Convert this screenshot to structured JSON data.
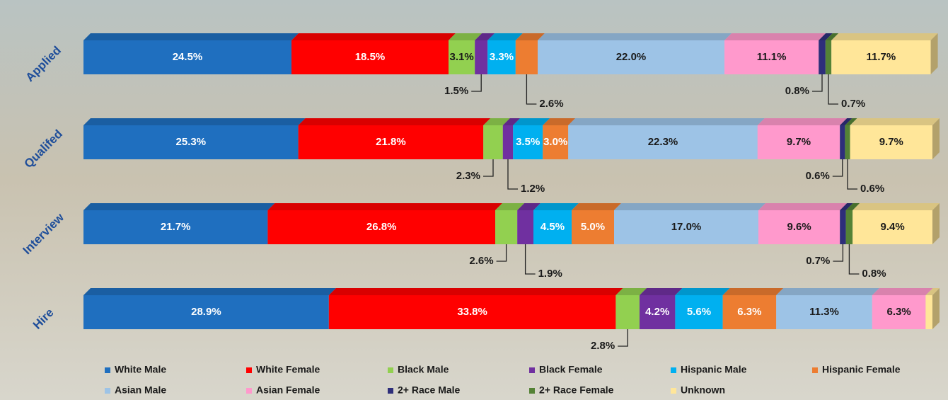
{
  "chart_data": {
    "type": "stacked-bar-horizontal",
    "categories": [
      "Applied",
      "Qualifed",
      "Interview",
      "Hire"
    ],
    "xlim": [
      0,
      100
    ],
    "series": [
      {
        "name": "White Male",
        "color": "#1f6fbf",
        "values": [
          24.5,
          25.3,
          21.7,
          28.9
        ],
        "value_labels": [
          "24.5%",
          "25.3%",
          "21.7%",
          "28.9%"
        ]
      },
      {
        "name": "White Female",
        "color": "#ff0000",
        "values": [
          18.5,
          21.8,
          26.8,
          33.8
        ],
        "value_labels": [
          "18.5%",
          "21.8%",
          "26.8%",
          "33.8%"
        ]
      },
      {
        "name": "Black Male",
        "color": "#92d050",
        "values": [
          3.1,
          2.3,
          2.6,
          2.8
        ],
        "value_labels": [
          "3.1%",
          "2.3%",
          "2.6%",
          "2.8%"
        ]
      },
      {
        "name": "Black Female",
        "color": "#7030a0",
        "values": [
          1.5,
          1.2,
          1.9,
          4.2
        ],
        "value_labels": [
          "1.5%",
          "1.2%",
          "1.9%",
          "4.2%"
        ]
      },
      {
        "name": "Hispanic Male",
        "color": "#00b0f0",
        "values": [
          3.3,
          3.5,
          4.5,
          5.6
        ],
        "value_labels": [
          "3.3%",
          "3.5%",
          "4.5%",
          "5.6%"
        ]
      },
      {
        "name": "Hispanic Female",
        "color": "#ed7d31",
        "values": [
          2.6,
          3.0,
          5.0,
          6.3
        ],
        "value_labels": [
          "2.6%",
          "3.0%",
          "5.0%",
          "6.3%"
        ]
      },
      {
        "name": "Asian Male",
        "color": "#9dc3e6",
        "values": [
          22.0,
          22.3,
          17.0,
          11.3
        ],
        "value_labels": [
          "22.0%",
          "22.3%",
          "17.0%",
          "11.3%"
        ]
      },
      {
        "name": "Asian Female",
        "color": "#ff99cc",
        "values": [
          11.1,
          9.7,
          9.6,
          6.3
        ],
        "value_labels": [
          "11.1%",
          "9.7%",
          "9.6%",
          "6.3%"
        ]
      },
      {
        "name": "2+ Race Male",
        "color": "#2e2e7a",
        "values": [
          0.8,
          0.6,
          0.7,
          null
        ],
        "value_labels": [
          "0.8%",
          "0.6%",
          "0.7%",
          null
        ]
      },
      {
        "name": "2+ Race Female",
        "color": "#548235",
        "values": [
          0.7,
          0.6,
          0.8,
          null
        ],
        "value_labels": [
          "0.7%",
          "0.6%",
          "0.8%",
          null
        ]
      },
      {
        "name": "Unknown",
        "color": "#ffe699",
        "values": [
          11.7,
          9.7,
          9.4,
          0.8
        ],
        "value_labels": [
          "11.7%",
          "9.7%",
          "9.4%",
          null
        ]
      }
    ]
  }
}
